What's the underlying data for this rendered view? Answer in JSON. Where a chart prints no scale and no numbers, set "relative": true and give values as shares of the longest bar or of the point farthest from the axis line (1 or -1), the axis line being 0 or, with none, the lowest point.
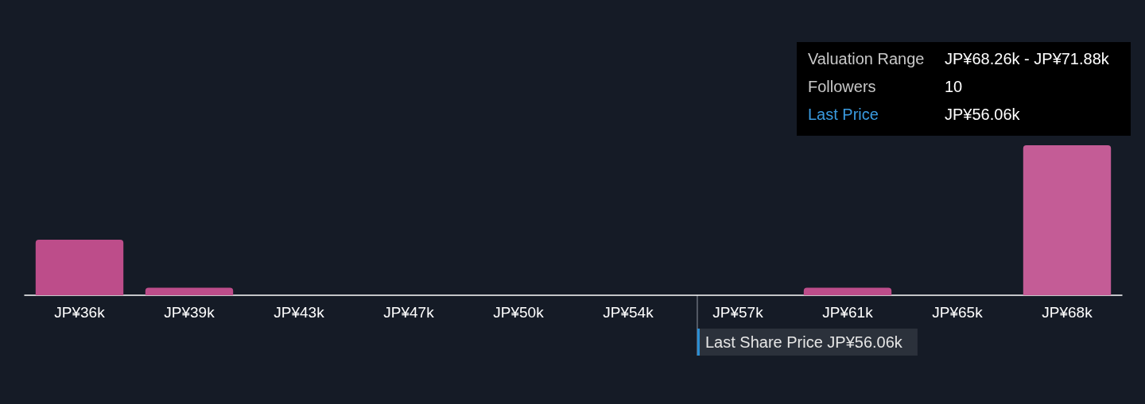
{
  "chart_data": {
    "type": "bar",
    "relative": true,
    "categories": [
      "JP¥36k",
      "JP¥39k",
      "JP¥43k",
      "JP¥47k",
      "JP¥50k",
      "JP¥54k",
      "JP¥57k",
      "JP¥61k",
      "JP¥65k",
      "JP¥68k"
    ],
    "values": [
      0.37,
      0.05,
      0,
      0,
      0,
      0,
      0,
      0.05,
      0,
      1
    ],
    "colors": [
      "#bd4d8a",
      "#bd4d8a",
      "#bd4d8a",
      "#bd4d8a",
      "#bd4d8a",
      "#bd4d8a",
      "#bd4d8a",
      "#bd4d8a",
      "#bd4d8a",
      "#c45c96"
    ],
    "annotations": [
      "Last Share Price JP¥56.06k",
      "Valuation Range",
      "JP¥68.26k - JP¥71.88k",
      "Followers",
      "10",
      "Last Price",
      "JP¥56.06k"
    ],
    "grid": false
  }
}
